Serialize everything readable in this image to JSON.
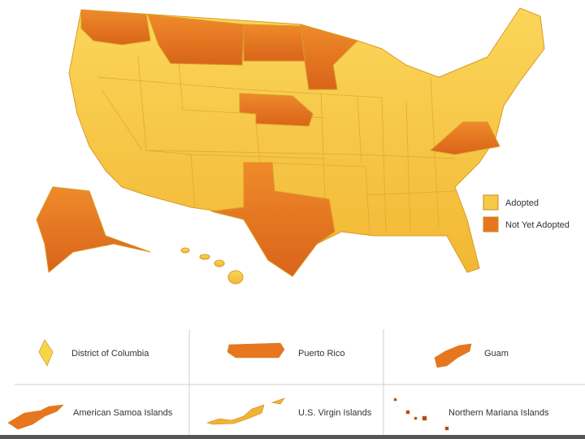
{
  "legend": [
    {
      "label": "Adopted",
      "color": "#f7c948"
    },
    {
      "label": "Not Yet Adopted",
      "color": "#e8761f"
    }
  ],
  "territories": [
    {
      "label": "District of Columbia",
      "color": "#f7d548"
    },
    {
      "label": "Puerto Rico",
      "color": "#e8761f"
    },
    {
      "label": "Guam",
      "color": "#e8761f"
    },
    {
      "label": "American Samoa Islands",
      "color": "#e8761f"
    },
    {
      "label": "U.S. Virgin Islands",
      "color": "#f2b431"
    },
    {
      "label": "Northern Mariana Islands",
      "color": "#b5401a"
    }
  ]
}
